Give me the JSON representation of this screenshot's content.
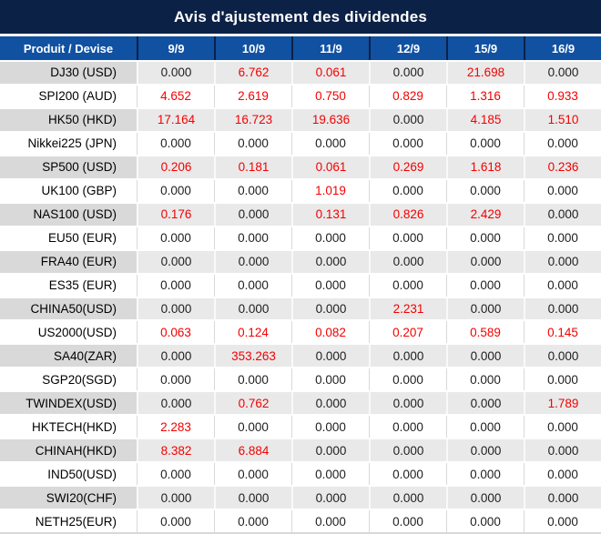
{
  "title": "Avis d'ajustement des dividendes",
  "colors": {
    "title_bar_bg": "#0c2146",
    "header_row_bg": "#1151a2",
    "stripe_label_bg": "#d9d9d9",
    "stripe_value_bg": "#e9e9e9",
    "negative_value_red": "#f40000",
    "value_black": "#1e1e1e"
  },
  "table": {
    "product_header": "Produit / Devise",
    "date_headers": [
      "9/9",
      "10/9",
      "11/9",
      "12/9",
      "15/9",
      "16/9"
    ],
    "rows": [
      {
        "product": "DJ30 (USD)",
        "values": [
          "0.000",
          "6.762",
          "0.061",
          "0.000",
          "21.698",
          "0.000"
        ],
        "red": [
          false,
          true,
          true,
          false,
          true,
          false
        ]
      },
      {
        "product": "SPI200 (AUD)",
        "values": [
          "4.652",
          "2.619",
          "0.750",
          "0.829",
          "1.316",
          "0.933"
        ],
        "red": [
          true,
          true,
          true,
          true,
          true,
          true
        ]
      },
      {
        "product": "HK50 (HKD)",
        "values": [
          "17.164",
          "16.723",
          "19.636",
          "0.000",
          "4.185",
          "1.510"
        ],
        "red": [
          true,
          true,
          true,
          false,
          true,
          true
        ]
      },
      {
        "product": "Nikkei225 (JPN)",
        "values": [
          "0.000",
          "0.000",
          "0.000",
          "0.000",
          "0.000",
          "0.000"
        ],
        "red": [
          false,
          false,
          false,
          false,
          false,
          false
        ]
      },
      {
        "product": "SP500 (USD)",
        "values": [
          "0.206",
          "0.181",
          "0.061",
          "0.269",
          "1.618",
          "0.236"
        ],
        "red": [
          true,
          true,
          true,
          true,
          true,
          true
        ]
      },
      {
        "product": "UK100 (GBP)",
        "values": [
          "0.000",
          "0.000",
          "1.019",
          "0.000",
          "0.000",
          "0.000"
        ],
        "red": [
          false,
          false,
          true,
          false,
          false,
          false
        ]
      },
      {
        "product": "NAS100 (USD)",
        "values": [
          "0.176",
          "0.000",
          "0.131",
          "0.826",
          "2.429",
          "0.000"
        ],
        "red": [
          true,
          false,
          true,
          true,
          true,
          false
        ]
      },
      {
        "product": "EU50 (EUR)",
        "values": [
          "0.000",
          "0.000",
          "0.000",
          "0.000",
          "0.000",
          "0.000"
        ],
        "red": [
          false,
          false,
          false,
          false,
          false,
          false
        ]
      },
      {
        "product": "FRA40 (EUR)",
        "values": [
          "0.000",
          "0.000",
          "0.000",
          "0.000",
          "0.000",
          "0.000"
        ],
        "red": [
          false,
          false,
          false,
          false,
          false,
          false
        ]
      },
      {
        "product": "ES35 (EUR)",
        "values": [
          "0.000",
          "0.000",
          "0.000",
          "0.000",
          "0.000",
          "0.000"
        ],
        "red": [
          false,
          false,
          false,
          false,
          false,
          false
        ]
      },
      {
        "product": "CHINA50(USD)",
        "values": [
          "0.000",
          "0.000",
          "0.000",
          "2.231",
          "0.000",
          "0.000"
        ],
        "red": [
          false,
          false,
          false,
          true,
          false,
          false
        ]
      },
      {
        "product": "US2000(USD)",
        "values": [
          "0.063",
          "0.124",
          "0.082",
          "0.207",
          "0.589",
          "0.145"
        ],
        "red": [
          true,
          true,
          true,
          true,
          true,
          true
        ]
      },
      {
        "product": "SA40(ZAR)",
        "values": [
          "0.000",
          "353.263",
          "0.000",
          "0.000",
          "0.000",
          "0.000"
        ],
        "red": [
          false,
          true,
          false,
          false,
          false,
          false
        ]
      },
      {
        "product": "SGP20(SGD)",
        "values": [
          "0.000",
          "0.000",
          "0.000",
          "0.000",
          "0.000",
          "0.000"
        ],
        "red": [
          false,
          false,
          false,
          false,
          false,
          false
        ]
      },
      {
        "product": "TWINDEX(USD)",
        "values": [
          "0.000",
          "0.762",
          "0.000",
          "0.000",
          "0.000",
          "1.789"
        ],
        "red": [
          false,
          true,
          false,
          false,
          false,
          true
        ]
      },
      {
        "product": "HKTECH(HKD)",
        "values": [
          "2.283",
          "0.000",
          "0.000",
          "0.000",
          "0.000",
          "0.000"
        ],
        "red": [
          true,
          false,
          false,
          false,
          false,
          false
        ]
      },
      {
        "product": "CHINAH(HKD)",
        "values": [
          "8.382",
          "6.884",
          "0.000",
          "0.000",
          "0.000",
          "0.000"
        ],
        "red": [
          true,
          true,
          false,
          false,
          false,
          false
        ]
      },
      {
        "product": "IND50(USD)",
        "values": [
          "0.000",
          "0.000",
          "0.000",
          "0.000",
          "0.000",
          "0.000"
        ],
        "red": [
          false,
          false,
          false,
          false,
          false,
          false
        ]
      },
      {
        "product": "SWI20(CHF)",
        "values": [
          "0.000",
          "0.000",
          "0.000",
          "0.000",
          "0.000",
          "0.000"
        ],
        "red": [
          false,
          false,
          false,
          false,
          false,
          false
        ]
      },
      {
        "product": "NETH25(EUR)",
        "values": [
          "0.000",
          "0.000",
          "0.000",
          "0.000",
          "0.000",
          "0.000"
        ],
        "red": [
          false,
          false,
          false,
          false,
          false,
          false
        ]
      }
    ]
  }
}
